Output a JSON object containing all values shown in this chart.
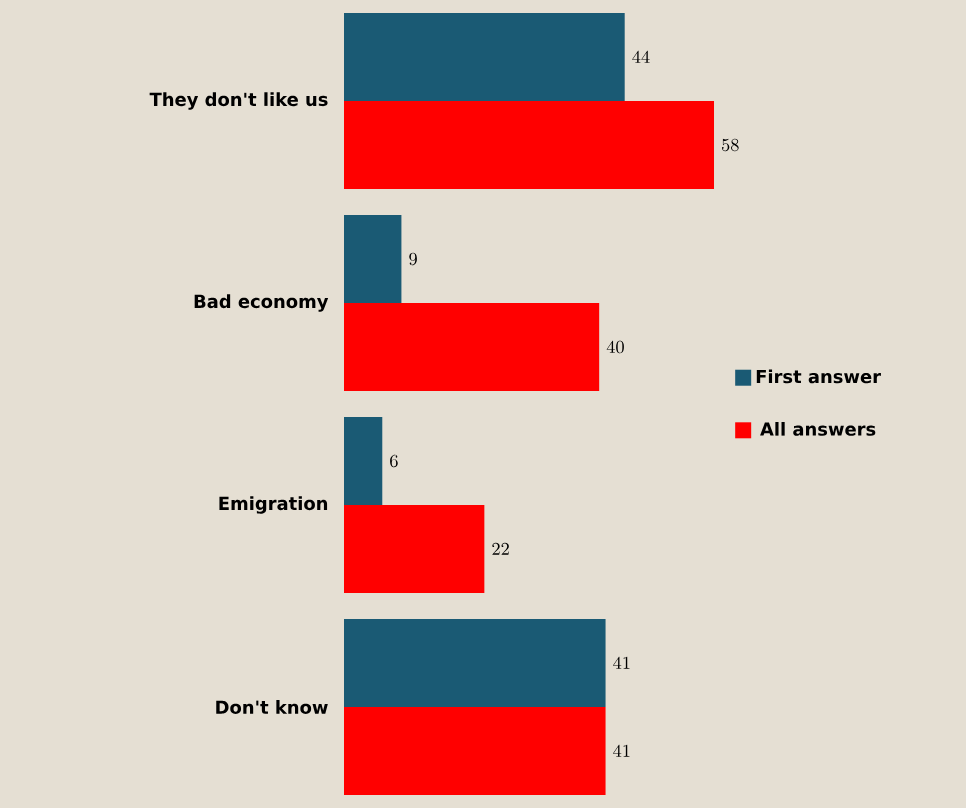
{
  "chart_data": {
    "type": "bar",
    "orientation": "horizontal",
    "categories": [
      "They don't like us",
      "Bad economy",
      "Emigration",
      "Don't know"
    ],
    "series": [
      {
        "name": "First answer",
        "color": "#1a5a74",
        "values": [
          44,
          9,
          6,
          41
        ]
      },
      {
        "name": "All answers",
        "color": "#ff0000",
        "values": [
          58,
          40,
          22,
          41
        ]
      }
    ],
    "data_labels": true,
    "legend": "right"
  }
}
